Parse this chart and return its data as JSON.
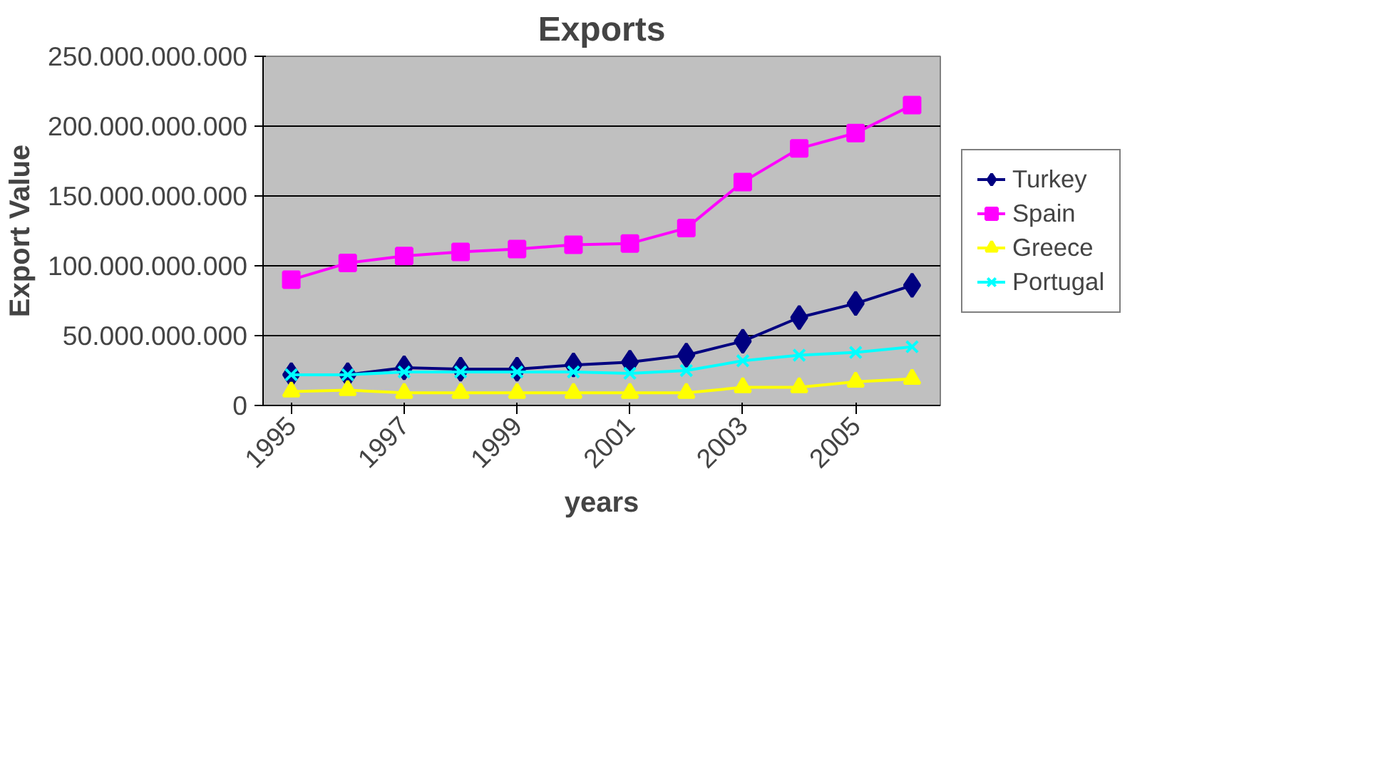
{
  "chart_data": {
    "type": "line",
    "title": "Exports",
    "xlabel": "years",
    "ylabel": "Export Value",
    "categories": [
      "1995",
      null,
      "1997",
      null,
      "1999",
      null,
      "2001",
      null,
      "2003",
      null,
      "2005",
      null
    ],
    "series": [
      {
        "name": "Turkey",
        "color": "#000080",
        "marker": "diamond",
        "values": [
          22000000000,
          22000000000,
          27000000000,
          26000000000,
          26000000000,
          29000000000,
          31000000000,
          36000000000,
          46000000000,
          63000000000,
          73000000000,
          86000000000
        ]
      },
      {
        "name": "Spain",
        "color": "#ff00ff",
        "marker": "square",
        "values": [
          90000000000,
          102000000000,
          107000000000,
          110000000000,
          112000000000,
          115000000000,
          116000000000,
          127000000000,
          160000000000,
          184000000000,
          195000000000,
          215000000000
        ]
      },
      {
        "name": "Greece",
        "color": "#ffff00",
        "marker": "triangle",
        "values": [
          10000000000,
          11000000000,
          9000000000,
          9000000000,
          9000000000,
          9000000000,
          9000000000,
          9000000000,
          13000000000,
          13000000000,
          17000000000,
          19000000000
        ]
      },
      {
        "name": "Portugal",
        "color": "#00ffff",
        "marker": "cross",
        "values": [
          22000000000,
          22000000000,
          24000000000,
          24000000000,
          24000000000,
          24000000000,
          23000000000,
          25000000000,
          32000000000,
          36000000000,
          38000000000,
          42000000000
        ]
      }
    ],
    "ylim": [
      0,
      250000000000
    ],
    "yticks": [
      0,
      {
        "value": 50000000000,
        "label": "50.000.000.000"
      },
      {
        "value": 100000000000,
        "label": "100.000.000.000"
      },
      {
        "value": 150000000000,
        "label": "150.000.000.000"
      },
      {
        "value": 200000000000,
        "label": "200.000.000.000"
      },
      {
        "value": 250000000000,
        "label": "250.000.000.000"
      }
    ],
    "grid": "y",
    "legend": "right",
    "line_style": "solid"
  }
}
